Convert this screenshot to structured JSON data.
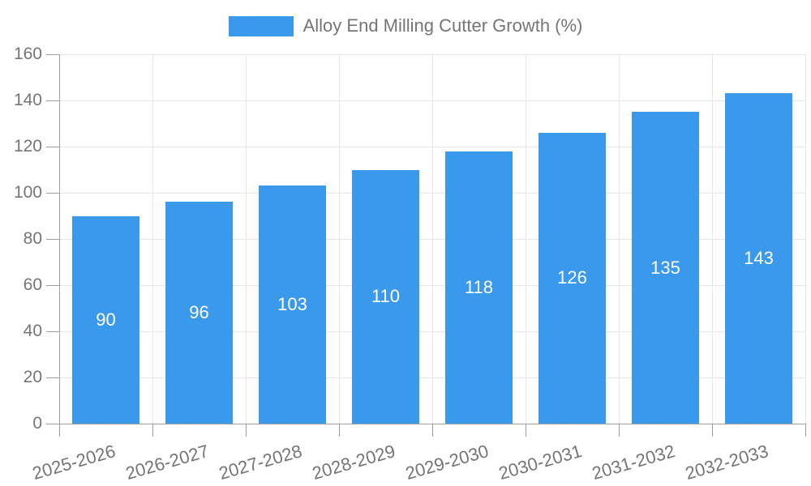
{
  "chart_data": {
    "type": "bar",
    "title": "Alloy End Milling Cutter Growth (%)",
    "legend": {
      "position": "top-center",
      "entries": [
        "Alloy End Milling Cutter Growth (%)"
      ]
    },
    "categories": [
      "2025-2026",
      "2026-2027",
      "2027-2028",
      "2028-2029",
      "2029-2030",
      "2030-2031",
      "2031-2032",
      "2032-2033"
    ],
    "series": [
      {
        "name": "Alloy End Milling Cutter Growth (%)",
        "values": [
          90,
          96,
          103,
          110,
          118,
          126,
          135,
          143
        ]
      }
    ],
    "value_labels_shown": true,
    "xlabel": "",
    "ylabel": "",
    "ylim": [
      0,
      160
    ],
    "yticks": [
      0,
      20,
      40,
      60,
      80,
      100,
      120,
      140,
      160
    ],
    "grid": true,
    "x_label_rotation_deg": -16,
    "colors": {
      "bar": "#3B99EC",
      "axis": "#9E9E9E",
      "grid": "#E6E6E6",
      "tick_text": "#757575",
      "value_text": "#FFFFFF"
    }
  }
}
